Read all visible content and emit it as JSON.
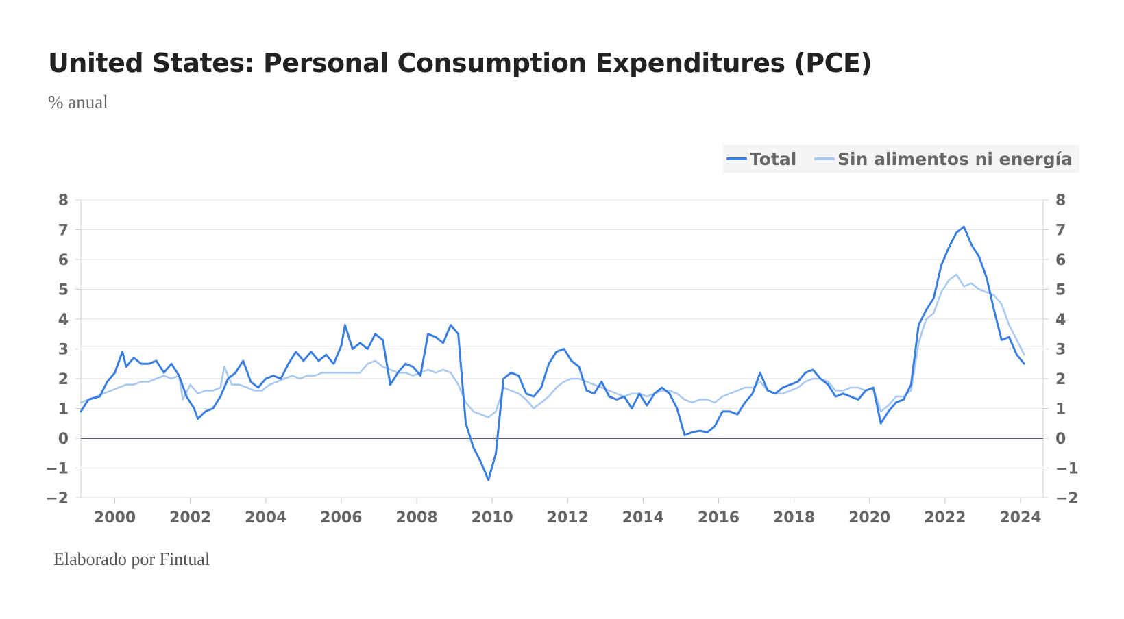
{
  "chart_data": {
    "type": "line",
    "title": "United States: Personal Consumption Expenditures (PCE)",
    "subtitle": "% anual",
    "source": "Elaborado por Fintual",
    "xlabel": "",
    "ylabel": "% anual",
    "xlim": [
      1999.1,
      2024.6
    ],
    "ylim": [
      -2,
      8
    ],
    "x_ticks": [
      2000,
      2002,
      2004,
      2006,
      2008,
      2010,
      2012,
      2014,
      2016,
      2018,
      2020,
      2022,
      2024
    ],
    "y_ticks": [
      -2,
      -1,
      0,
      1,
      2,
      3,
      4,
      5,
      6,
      7,
      8
    ],
    "grid": true,
    "legend_position": "top-right",
    "series": [
      {
        "name": "Total",
        "color": "#3a7ee0",
        "points": [
          [
            1999.1,
            0.9
          ],
          [
            1999.3,
            1.3
          ],
          [
            1999.6,
            1.4
          ],
          [
            1999.8,
            1.9
          ],
          [
            2000.0,
            2.2
          ],
          [
            2000.2,
            2.9
          ],
          [
            2000.3,
            2.4
          ],
          [
            2000.5,
            2.7
          ],
          [
            2000.7,
            2.5
          ],
          [
            2000.9,
            2.5
          ],
          [
            2001.1,
            2.6
          ],
          [
            2001.3,
            2.2
          ],
          [
            2001.5,
            2.5
          ],
          [
            2001.7,
            2.1
          ],
          [
            2001.9,
            1.4
          ],
          [
            2002.1,
            1.0
          ],
          [
            2002.2,
            0.65
          ],
          [
            2002.4,
            0.9
          ],
          [
            2002.6,
            1.0
          ],
          [
            2002.8,
            1.4
          ],
          [
            2003.0,
            2.0
          ],
          [
            2003.2,
            2.2
          ],
          [
            2003.4,
            2.6
          ],
          [
            2003.6,
            1.9
          ],
          [
            2003.8,
            1.7
          ],
          [
            2004.0,
            2.0
          ],
          [
            2004.2,
            2.1
          ],
          [
            2004.4,
            2.0
          ],
          [
            2004.6,
            2.5
          ],
          [
            2004.8,
            2.9
          ],
          [
            2005.0,
            2.6
          ],
          [
            2005.2,
            2.9
          ],
          [
            2005.4,
            2.6
          ],
          [
            2005.6,
            2.8
          ],
          [
            2005.8,
            2.5
          ],
          [
            2006.0,
            3.1
          ],
          [
            2006.1,
            3.8
          ],
          [
            2006.3,
            3.0
          ],
          [
            2006.5,
            3.2
          ],
          [
            2006.7,
            3.0
          ],
          [
            2006.9,
            3.5
          ],
          [
            2007.1,
            3.3
          ],
          [
            2007.3,
            1.8
          ],
          [
            2007.5,
            2.2
          ],
          [
            2007.7,
            2.5
          ],
          [
            2007.9,
            2.4
          ],
          [
            2008.1,
            2.1
          ],
          [
            2008.3,
            3.5
          ],
          [
            2008.5,
            3.4
          ],
          [
            2008.7,
            3.2
          ],
          [
            2008.9,
            3.8
          ],
          [
            2009.1,
            3.5
          ],
          [
            2009.3,
            0.5
          ],
          [
            2009.5,
            -0.3
          ],
          [
            2009.7,
            -0.8
          ],
          [
            2009.9,
            -1.4
          ],
          [
            2010.1,
            -0.5
          ],
          [
            2010.3,
            2.0
          ],
          [
            2010.5,
            2.2
          ],
          [
            2010.7,
            2.1
          ],
          [
            2010.9,
            1.5
          ],
          [
            2011.1,
            1.4
          ],
          [
            2011.3,
            1.7
          ],
          [
            2011.5,
            2.5
          ],
          [
            2011.7,
            2.9
          ],
          [
            2011.9,
            3.0
          ],
          [
            2012.1,
            2.6
          ],
          [
            2012.3,
            2.4
          ],
          [
            2012.5,
            1.6
          ],
          [
            2012.7,
            1.5
          ],
          [
            2012.9,
            1.9
          ],
          [
            2013.1,
            1.4
          ],
          [
            2013.3,
            1.3
          ],
          [
            2013.5,
            1.4
          ],
          [
            2013.7,
            1.0
          ],
          [
            2013.9,
            1.5
          ],
          [
            2014.1,
            1.1
          ],
          [
            2014.3,
            1.5
          ],
          [
            2014.5,
            1.7
          ],
          [
            2014.7,
            1.5
          ],
          [
            2014.9,
            1.0
          ],
          [
            2015.1,
            0.1
          ],
          [
            2015.3,
            0.2
          ],
          [
            2015.5,
            0.25
          ],
          [
            2015.7,
            0.2
          ],
          [
            2015.9,
            0.4
          ],
          [
            2016.1,
            0.9
          ],
          [
            2016.3,
            0.9
          ],
          [
            2016.5,
            0.8
          ],
          [
            2016.7,
            1.2
          ],
          [
            2016.9,
            1.5
          ],
          [
            2017.1,
            2.2
          ],
          [
            2017.3,
            1.6
          ],
          [
            2017.5,
            1.5
          ],
          [
            2017.7,
            1.7
          ],
          [
            2017.9,
            1.8
          ],
          [
            2018.1,
            1.9
          ],
          [
            2018.3,
            2.2
          ],
          [
            2018.5,
            2.3
          ],
          [
            2018.7,
            2.0
          ],
          [
            2018.9,
            1.8
          ],
          [
            2019.1,
            1.4
          ],
          [
            2019.3,
            1.5
          ],
          [
            2019.5,
            1.4
          ],
          [
            2019.7,
            1.3
          ],
          [
            2019.9,
            1.6
          ],
          [
            2020.1,
            1.7
          ],
          [
            2020.3,
            0.5
          ],
          [
            2020.5,
            0.9
          ],
          [
            2020.7,
            1.2
          ],
          [
            2020.9,
            1.3
          ],
          [
            2021.1,
            1.8
          ],
          [
            2021.3,
            3.8
          ],
          [
            2021.5,
            4.3
          ],
          [
            2021.7,
            4.7
          ],
          [
            2021.9,
            5.8
          ],
          [
            2022.1,
            6.4
          ],
          [
            2022.3,
            6.9
          ],
          [
            2022.5,
            7.1
          ],
          [
            2022.7,
            6.5
          ],
          [
            2022.9,
            6.1
          ],
          [
            2023.1,
            5.4
          ],
          [
            2023.3,
            4.3
          ],
          [
            2023.5,
            3.3
          ],
          [
            2023.7,
            3.4
          ],
          [
            2023.9,
            2.8
          ],
          [
            2024.1,
            2.5
          ]
        ]
      },
      {
        "name": "Sin alimentos ni energía",
        "color": "#a9c8f2",
        "points": [
          [
            1999.1,
            1.2
          ],
          [
            1999.3,
            1.3
          ],
          [
            1999.5,
            1.4
          ],
          [
            1999.7,
            1.5
          ],
          [
            1999.9,
            1.6
          ],
          [
            2000.1,
            1.7
          ],
          [
            2000.3,
            1.8
          ],
          [
            2000.5,
            1.8
          ],
          [
            2000.7,
            1.9
          ],
          [
            2000.9,
            1.9
          ],
          [
            2001.1,
            2.0
          ],
          [
            2001.3,
            2.1
          ],
          [
            2001.5,
            2.0
          ],
          [
            2001.7,
            2.1
          ],
          [
            2001.8,
            1.3
          ],
          [
            2002.0,
            1.8
          ],
          [
            2002.2,
            1.5
          ],
          [
            2002.4,
            1.6
          ],
          [
            2002.6,
            1.6
          ],
          [
            2002.8,
            1.7
          ],
          [
            2002.9,
            2.4
          ],
          [
            2003.1,
            1.8
          ],
          [
            2003.3,
            1.8
          ],
          [
            2003.5,
            1.7
          ],
          [
            2003.7,
            1.6
          ],
          [
            2003.9,
            1.6
          ],
          [
            2004.1,
            1.8
          ],
          [
            2004.3,
            1.9
          ],
          [
            2004.5,
            2.0
          ],
          [
            2004.7,
            2.1
          ],
          [
            2004.9,
            2.0
          ],
          [
            2005.1,
            2.1
          ],
          [
            2005.3,
            2.1
          ],
          [
            2005.5,
            2.2
          ],
          [
            2005.7,
            2.2
          ],
          [
            2005.9,
            2.2
          ],
          [
            2006.1,
            2.2
          ],
          [
            2006.3,
            2.2
          ],
          [
            2006.5,
            2.2
          ],
          [
            2006.7,
            2.5
          ],
          [
            2006.9,
            2.6
          ],
          [
            2007.1,
            2.4
          ],
          [
            2007.3,
            2.3
          ],
          [
            2007.5,
            2.2
          ],
          [
            2007.7,
            2.2
          ],
          [
            2007.9,
            2.1
          ],
          [
            2008.1,
            2.2
          ],
          [
            2008.3,
            2.3
          ],
          [
            2008.5,
            2.2
          ],
          [
            2008.7,
            2.3
          ],
          [
            2008.9,
            2.2
          ],
          [
            2009.1,
            1.8
          ],
          [
            2009.3,
            1.2
          ],
          [
            2009.5,
            0.9
          ],
          [
            2009.7,
            0.8
          ],
          [
            2009.9,
            0.7
          ],
          [
            2010.1,
            0.9
          ],
          [
            2010.3,
            1.7
          ],
          [
            2010.5,
            1.6
          ],
          [
            2010.7,
            1.5
          ],
          [
            2010.9,
            1.3
          ],
          [
            2011.1,
            1.0
          ],
          [
            2011.3,
            1.2
          ],
          [
            2011.5,
            1.4
          ],
          [
            2011.7,
            1.7
          ],
          [
            2011.9,
            1.9
          ],
          [
            2012.1,
            2.0
          ],
          [
            2012.3,
            2.0
          ],
          [
            2012.5,
            1.9
          ],
          [
            2012.7,
            1.8
          ],
          [
            2012.9,
            1.7
          ],
          [
            2013.1,
            1.6
          ],
          [
            2013.3,
            1.5
          ],
          [
            2013.5,
            1.4
          ],
          [
            2013.7,
            1.5
          ],
          [
            2013.9,
            1.5
          ],
          [
            2014.1,
            1.4
          ],
          [
            2014.3,
            1.5
          ],
          [
            2014.5,
            1.6
          ],
          [
            2014.7,
            1.6
          ],
          [
            2014.9,
            1.5
          ],
          [
            2015.1,
            1.3
          ],
          [
            2015.3,
            1.2
          ],
          [
            2015.5,
            1.3
          ],
          [
            2015.7,
            1.3
          ],
          [
            2015.9,
            1.2
          ],
          [
            2016.1,
            1.4
          ],
          [
            2016.3,
            1.5
          ],
          [
            2016.5,
            1.6
          ],
          [
            2016.7,
            1.7
          ],
          [
            2016.9,
            1.7
          ],
          [
            2017.1,
            1.9
          ],
          [
            2017.3,
            1.6
          ],
          [
            2017.5,
            1.5
          ],
          [
            2017.7,
            1.5
          ],
          [
            2017.9,
            1.6
          ],
          [
            2018.1,
            1.7
          ],
          [
            2018.3,
            1.9
          ],
          [
            2018.5,
            2.0
          ],
          [
            2018.7,
            2.0
          ],
          [
            2018.9,
            1.9
          ],
          [
            2019.1,
            1.6
          ],
          [
            2019.3,
            1.6
          ],
          [
            2019.5,
            1.7
          ],
          [
            2019.7,
            1.7
          ],
          [
            2019.9,
            1.6
          ],
          [
            2020.1,
            1.7
          ],
          [
            2020.3,
            0.9
          ],
          [
            2020.5,
            1.1
          ],
          [
            2020.7,
            1.4
          ],
          [
            2020.9,
            1.4
          ],
          [
            2021.1,
            1.6
          ],
          [
            2021.3,
            3.2
          ],
          [
            2021.5,
            4.0
          ],
          [
            2021.7,
            4.2
          ],
          [
            2021.9,
            4.9
          ],
          [
            2022.1,
            5.3
          ],
          [
            2022.3,
            5.5
          ],
          [
            2022.5,
            5.1
          ],
          [
            2022.7,
            5.2
          ],
          [
            2022.9,
            5.0
          ],
          [
            2023.1,
            4.9
          ],
          [
            2023.3,
            4.8
          ],
          [
            2023.5,
            4.5
          ],
          [
            2023.7,
            3.8
          ],
          [
            2023.9,
            3.3
          ],
          [
            2024.1,
            2.8
          ]
        ]
      }
    ]
  }
}
